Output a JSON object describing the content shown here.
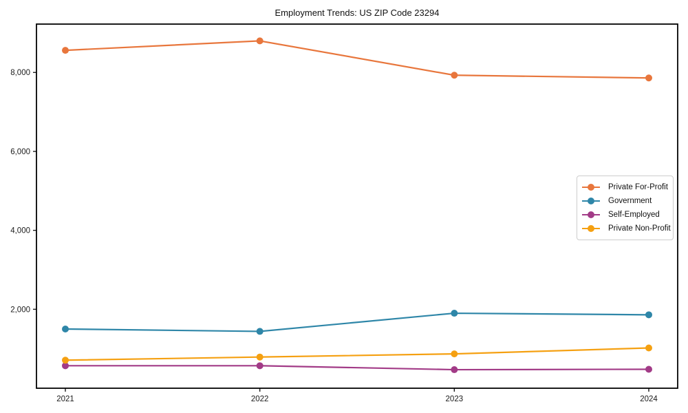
{
  "chart_data": {
    "type": "line",
    "title": "Employment Trends: US ZIP Code 23294",
    "xlabel": "",
    "ylabel": "",
    "categories": [
      "2021",
      "2022",
      "2023",
      "2024"
    ],
    "series": [
      {
        "name": "Private For-Profit",
        "color": "#E8763C",
        "values": [
          8560,
          8800,
          7930,
          7860
        ]
      },
      {
        "name": "Government",
        "color": "#2E86A8",
        "values": [
          1500,
          1440,
          1900,
          1860
        ]
      },
      {
        "name": "Self-Employed",
        "color": "#A23B87",
        "values": [
          570,
          570,
          470,
          480
        ]
      },
      {
        "name": "Private Non-Profit",
        "color": "#F5A011",
        "values": [
          710,
          790,
          870,
          1020
        ]
      }
    ],
    "yticks": [
      {
        "value": 2000,
        "label": "2,000"
      },
      {
        "value": 4000,
        "label": "4,000"
      },
      {
        "value": 6000,
        "label": "6,000"
      },
      {
        "value": 8000,
        "label": "8,000"
      }
    ],
    "ylim": [
      0,
      9225
    ],
    "grid": false,
    "legend_position": "center-right",
    "marker": "circle"
  }
}
